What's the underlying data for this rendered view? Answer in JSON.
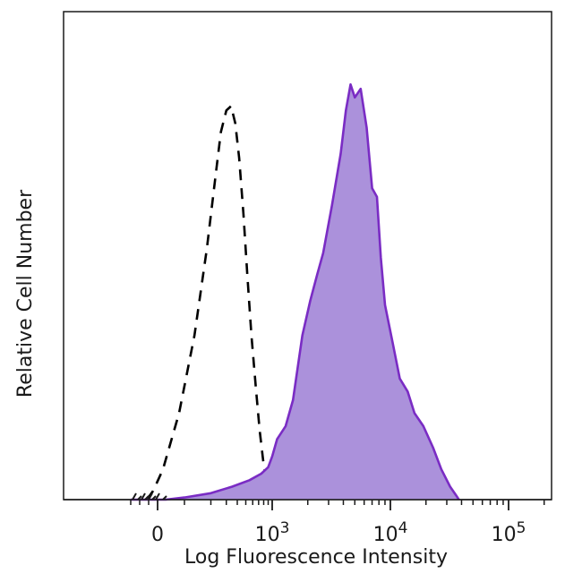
{
  "chart_data": {
    "type": "area",
    "xlabel": "Log Fluorescence Intensity",
    "ylabel": "Relative Cell Number",
    "x_scale": "biexponential",
    "xlim": [
      -300,
      200000
    ],
    "ylim": [
      0,
      100
    ],
    "x_ticks": [
      {
        "value": 0,
        "base": "0",
        "exp": ""
      },
      {
        "value": 1000,
        "base": "10",
        "exp": "3"
      },
      {
        "value": 10000,
        "base": "10",
        "exp": "4"
      },
      {
        "value": 100000,
        "base": "10",
        "exp": "5"
      }
    ],
    "grid": false,
    "legend": "none",
    "series": [
      {
        "style": "dashed",
        "color": "#000000",
        "x": [
          -120,
          -50,
          20,
          80,
          130,
          180,
          230,
          260,
          300,
          340,
          380,
          420,
          470,
          520,
          580,
          650,
          720,
          800,
          870,
          940
        ],
        "y": [
          0,
          2,
          7,
          20,
          38,
          58,
          76,
          85,
          90,
          91,
          87,
          79,
          66,
          52,
          38,
          26,
          16,
          8,
          4,
          1
        ]
      },
      {
        "style": "filled",
        "color": "#7a2cc4",
        "fill": "#ab91db",
        "x": [
          -300,
          30,
          100,
          200,
          350,
          550,
          750,
          900,
          1000,
          1100,
          1300,
          1500,
          1800,
          2100,
          2400,
          2700,
          3200,
          3800,
          4200,
          4600,
          5000,
          5600,
          6300,
          7000,
          7700,
          8300,
          9000,
          10500,
          12000,
          14000,
          16000,
          19000,
          23000,
          27000,
          32000,
          36000,
          38000
        ],
        "y": [
          0,
          0,
          0.5,
          1.5,
          3,
          4.5,
          6,
          7.5,
          10,
          14,
          17,
          23,
          38,
          46,
          52,
          57,
          68,
          80,
          90,
          96,
          93,
          95,
          86,
          72,
          70,
          56,
          45,
          36,
          28,
          25,
          20,
          17,
          12,
          7,
          3,
          1,
          0
        ]
      }
    ]
  }
}
